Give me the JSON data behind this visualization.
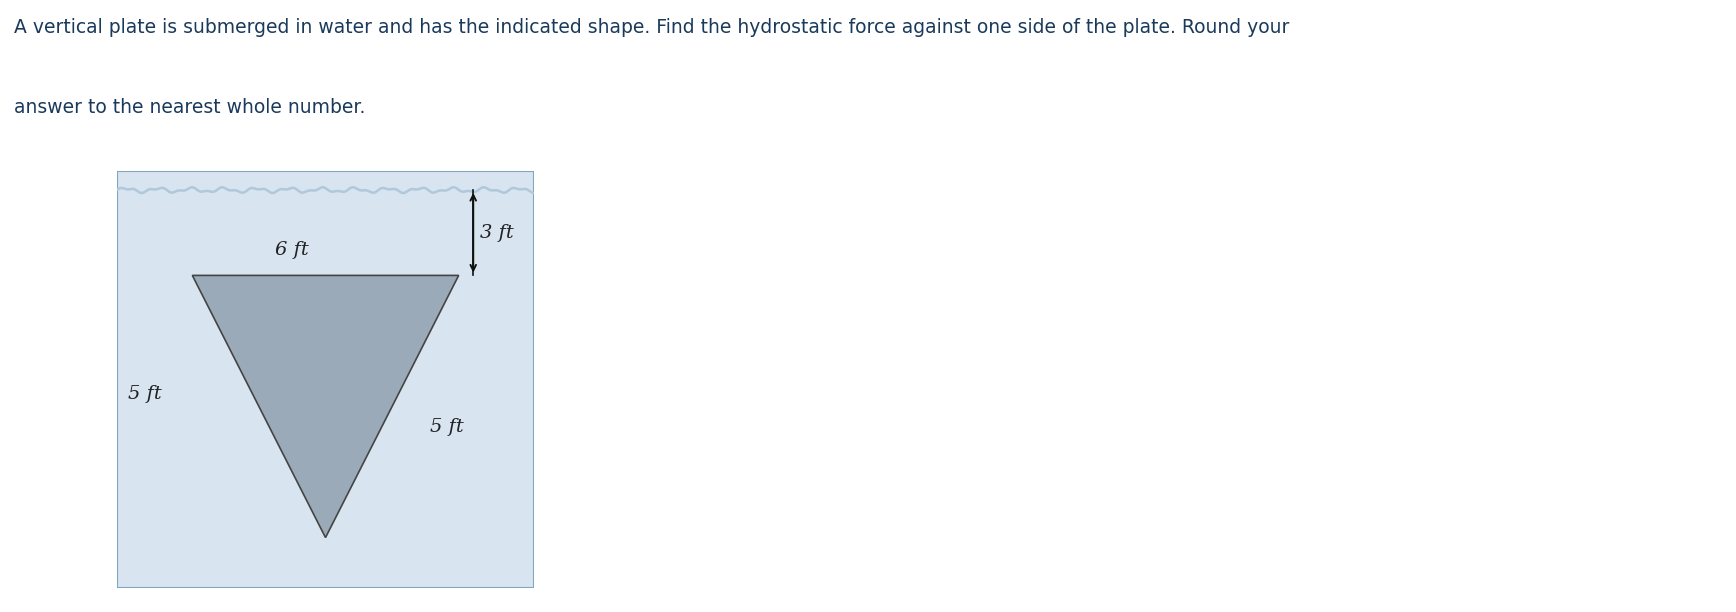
{
  "title_line1": "A vertical plate is submerged in water and has the indicated shape. Find the hydrostatic force against one side of the plate. Round your",
  "title_line2": "answer to the nearest whole number.",
  "title_color": "#1a3a5c",
  "title_fontsize": 13.5,
  "bg_color_outer": "#ffffff",
  "bg_color_water": "#d8e4ef",
  "water_line_color": "#b0c8dc",
  "triangle_color": "#9aaab9",
  "triangle_edge_color": "#444444",
  "label_6ft": "6 ft",
  "label_3ft": "3 ft",
  "label_5ft_left": "5 ft",
  "label_5ft_right": "5 ft",
  "label_fontsize": 14,
  "label_color": "#222222",
  "arrow_color": "#111111"
}
